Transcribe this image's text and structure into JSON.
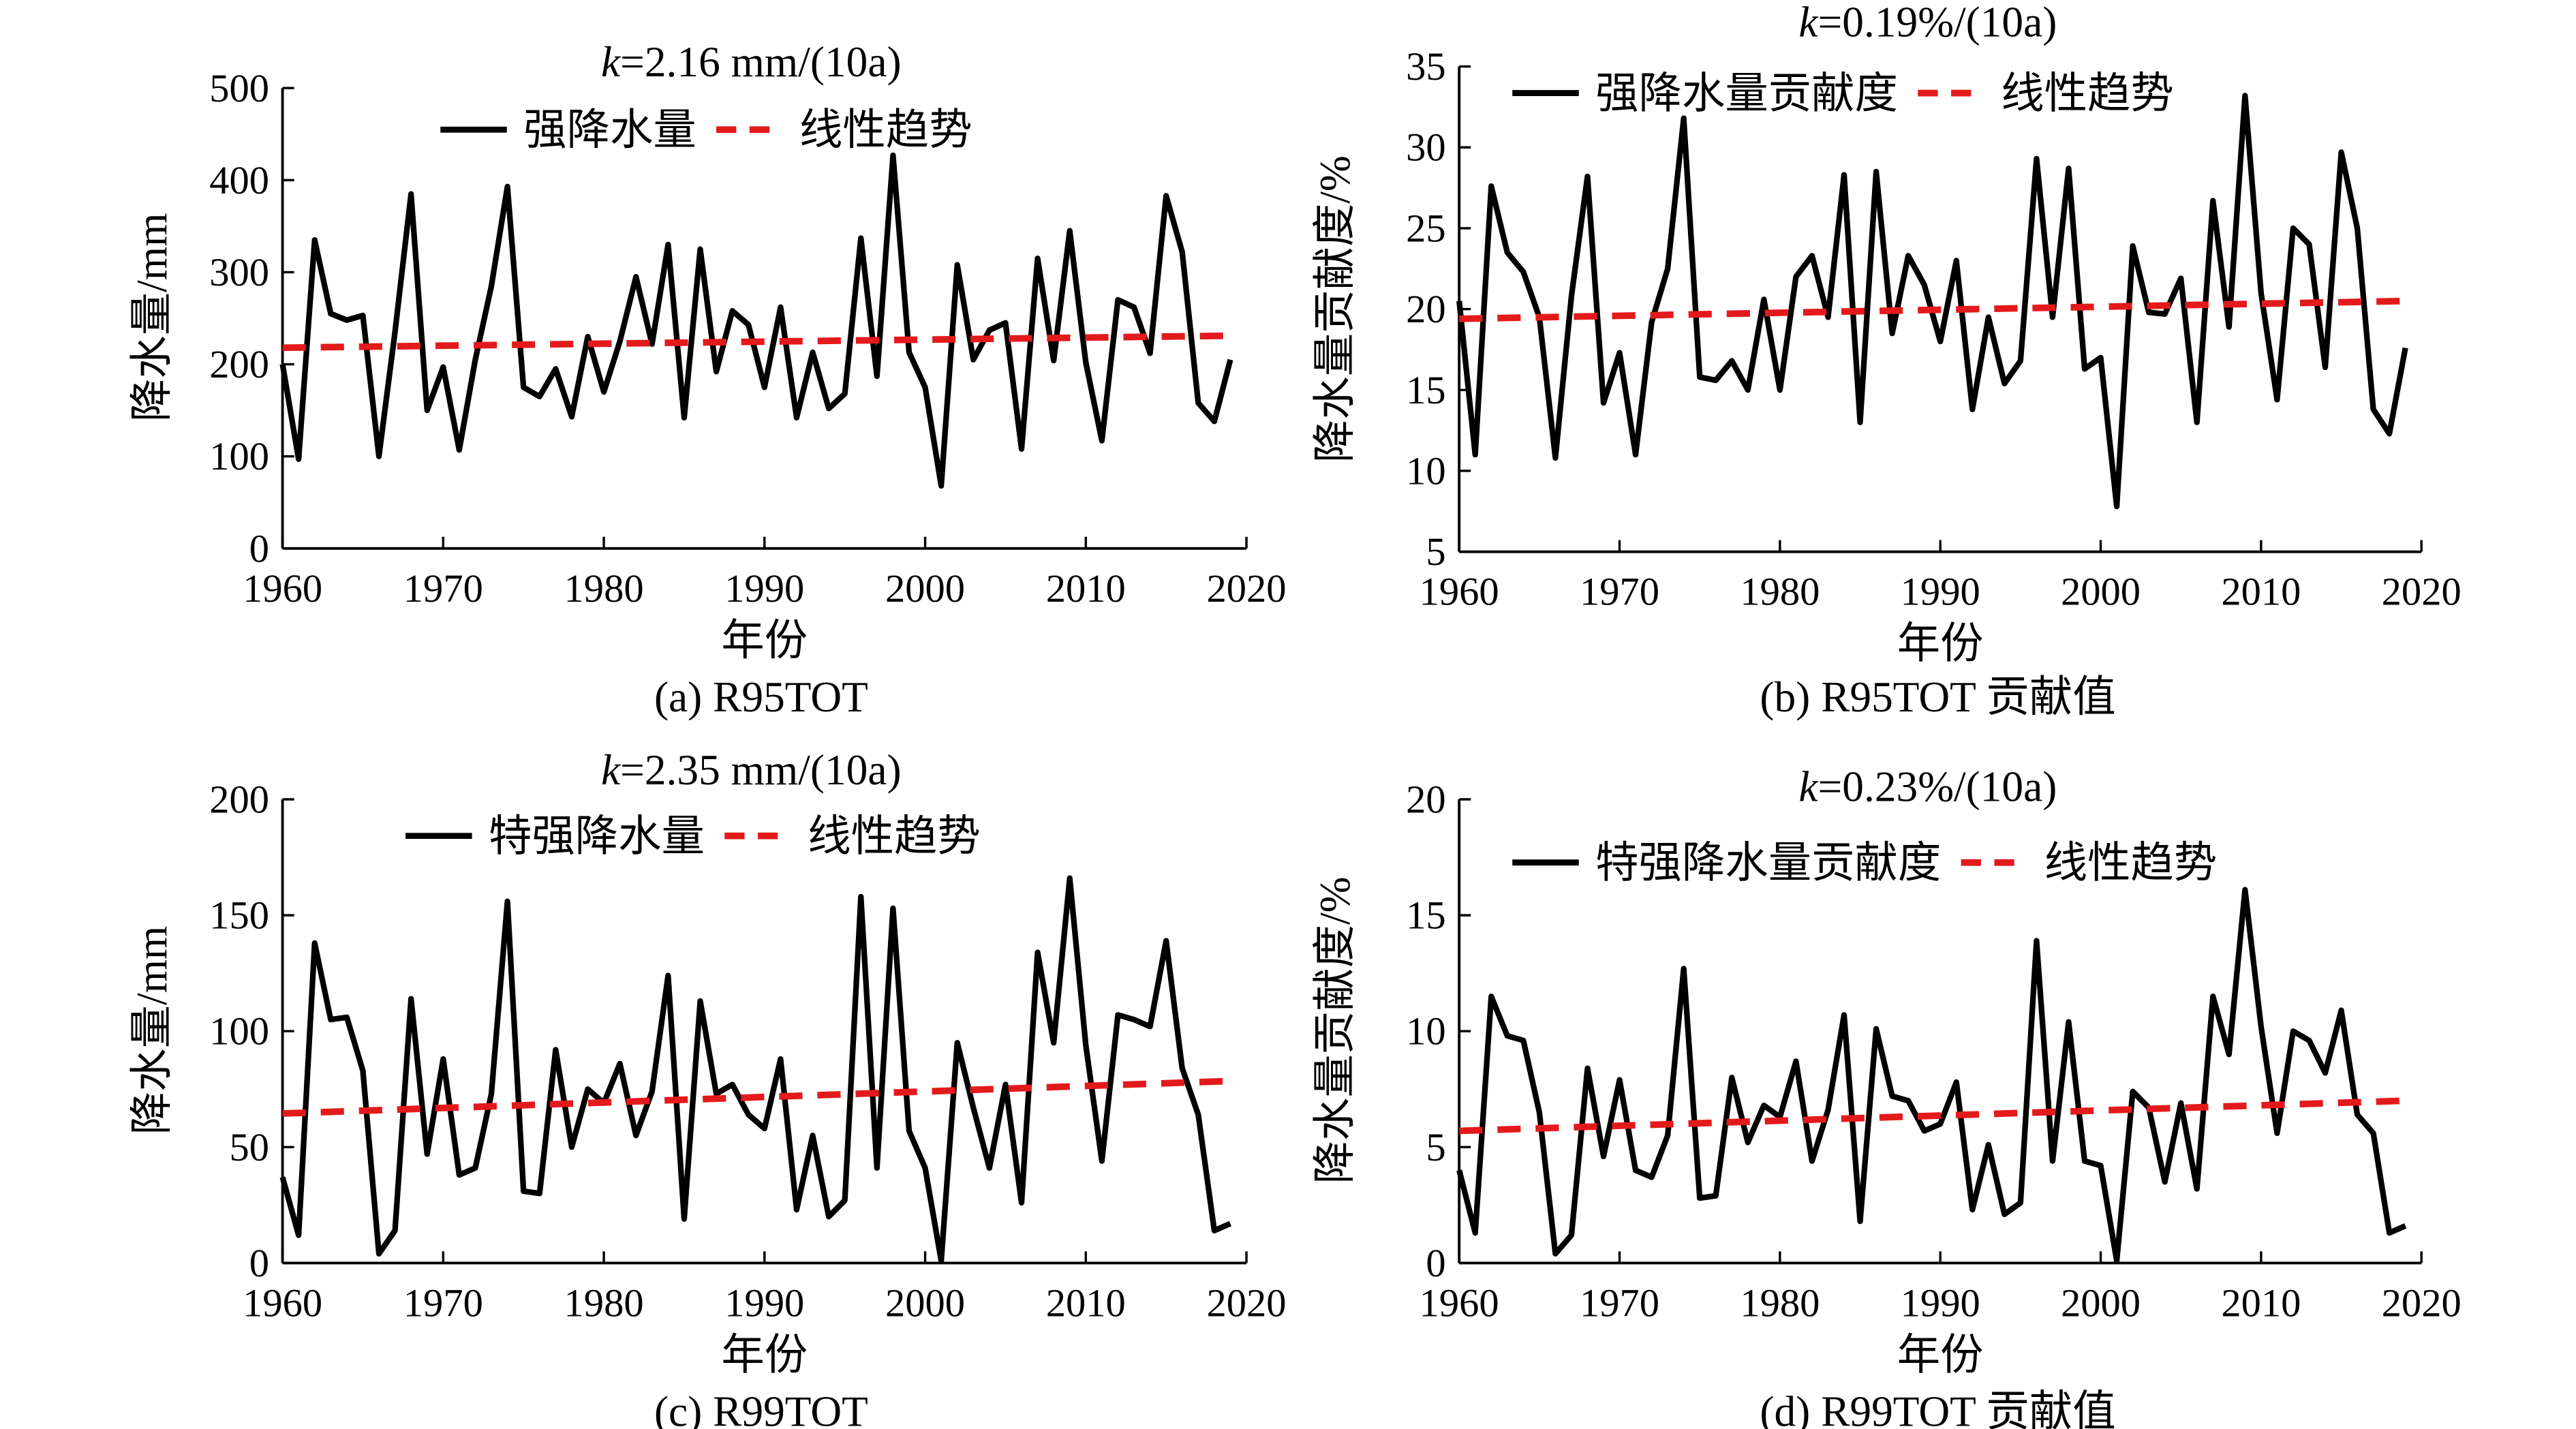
{
  "chart_data": [
    {
      "id": "a",
      "type": "line",
      "annotation": "k=2.16 mm/(10a)",
      "annotation_parts": {
        "k": "k",
        "rest": "=2.16 mm/(10a)"
      },
      "caption": "(a) R95TOT",
      "xlabel": "年份",
      "ylabel": "降水量/mm",
      "xlim": [
        1960,
        2020
      ],
      "ylim": [
        0,
        500
      ],
      "xticks": [
        1960,
        1970,
        1980,
        1990,
        2000,
        2010,
        2020
      ],
      "yticks": [
        0,
        100,
        200,
        300,
        400,
        500
      ],
      "grid": false,
      "legend_placement": "top-center",
      "series": [
        {
          "name": "强降水量",
          "color": "#000000",
          "style": "solid",
          "x": [
            1960,
            1961,
            1962,
            1963,
            1964,
            1965,
            1966,
            1967,
            1968,
            1969,
            1970,
            1971,
            1972,
            1973,
            1974,
            1975,
            1976,
            1977,
            1978,
            1979,
            1980,
            1981,
            1982,
            1983,
            1984,
            1985,
            1986,
            1987,
            1988,
            1989,
            1990,
            1991,
            1992,
            1993,
            1994,
            1995,
            1996,
            1997,
            1998,
            1999,
            2000,
            2001,
            2002,
            2003,
            2004,
            2005,
            2006,
            2007,
            2008,
            2009,
            2010,
            2011,
            2012,
            2013,
            2014,
            2015,
            2016,
            2017,
            2018,
            2019
          ],
          "values": [
            200,
            97,
            335,
            255,
            248,
            253,
            100,
            235,
            385,
            150,
            197,
            107,
            205,
            285,
            393,
            175,
            165,
            195,
            143,
            230,
            170,
            225,
            295,
            222,
            330,
            142,
            325,
            192,
            258,
            243,
            175,
            262,
            142,
            213,
            152,
            168,
            337,
            187,
            427,
            213,
            175,
            68,
            308,
            205,
            237,
            245,
            108,
            315,
            204,
            345,
            202,
            117,
            270,
            262,
            212,
            383,
            322,
            158,
            138,
            205
          ]
        },
        {
          "name": "线性趋势",
          "color": "#e31a1c",
          "style": "dashed",
          "x": [
            1960,
            2019
          ],
          "values": [
            218,
            231
          ]
        }
      ]
    },
    {
      "id": "b",
      "type": "line",
      "annotation": "k=0.19%/(10a)",
      "annotation_parts": {
        "k": "k",
        "rest": "=0.19%/(10a)"
      },
      "caption": "(b) R95TOT 贡献值",
      "xlabel": "年份",
      "ylabel": "降水量贡献度/%",
      "xlim": [
        1960,
        2020
      ],
      "ylim": [
        5,
        35
      ],
      "xticks": [
        1960,
        1970,
        1980,
        1990,
        2000,
        2010,
        2020
      ],
      "yticks": [
        5,
        10,
        15,
        20,
        25,
        30,
        35
      ],
      "grid": false,
      "legend_placement": "top-center",
      "series": [
        {
          "name": "强降水量贡献度",
          "color": "#000000",
          "style": "solid",
          "x": [
            1960,
            1961,
            1962,
            1963,
            1964,
            1965,
            1966,
            1967,
            1968,
            1969,
            1970,
            1971,
            1972,
            1973,
            1974,
            1975,
            1976,
            1977,
            1978,
            1979,
            1980,
            1981,
            1982,
            1983,
            1984,
            1985,
            1986,
            1987,
            1988,
            1989,
            1990,
            1991,
            1992,
            1993,
            1994,
            1995,
            1996,
            1997,
            1998,
            1999,
            2000,
            2001,
            2002,
            2003,
            2004,
            2005,
            2006,
            2007,
            2008,
            2009,
            2010,
            2011,
            2012,
            2013,
            2014,
            2015,
            2016,
            2017,
            2018,
            2019
          ],
          "values": [
            20.5,
            11.0,
            27.6,
            23.5,
            22.3,
            19.5,
            10.8,
            20.8,
            28.2,
            14.2,
            17.3,
            11.0,
            19.2,
            22.5,
            31.8,
            15.8,
            15.6,
            16.8,
            15.0,
            20.6,
            15.0,
            22.0,
            23.3,
            19.5,
            28.3,
            13.0,
            28.5,
            18.5,
            23.3,
            21.5,
            18.0,
            23.0,
            13.8,
            19.5,
            15.4,
            16.8,
            29.3,
            19.5,
            28.7,
            16.3,
            17.0,
            7.8,
            23.9,
            19.8,
            19.7,
            21.9,
            13.0,
            26.7,
            18.9,
            33.2,
            21.0,
            14.4,
            25.0,
            24.0,
            16.4,
            29.7,
            25.0,
            13.8,
            12.3,
            17.6
          ]
        },
        {
          "name": "线性趋势",
          "color": "#e31a1c",
          "style": "dashed",
          "x": [
            1960,
            2019
          ],
          "values": [
            19.4,
            20.5
          ]
        }
      ]
    },
    {
      "id": "c",
      "type": "line",
      "annotation": "k=2.35 mm/(10a)",
      "annotation_parts": {
        "k": "k",
        "rest": "=2.35 mm/(10a)"
      },
      "caption": "(c) R99TOT",
      "xlabel": "年份",
      "ylabel": "降水量/mm",
      "xlim": [
        1960,
        2020
      ],
      "ylim": [
        0,
        200
      ],
      "xticks": [
        1960,
        1970,
        1980,
        1990,
        2000,
        2010,
        2020
      ],
      "yticks": [
        0,
        50,
        100,
        150,
        200
      ],
      "grid": false,
      "legend_placement": "top-center",
      "series": [
        {
          "name": "特强降水量",
          "color": "#000000",
          "style": "solid",
          "x": [
            1960,
            1961,
            1962,
            1963,
            1964,
            1965,
            1966,
            1967,
            1968,
            1969,
            1970,
            1971,
            1972,
            1973,
            1974,
            1975,
            1976,
            1977,
            1978,
            1979,
            1980,
            1981,
            1982,
            1983,
            1984,
            1985,
            1986,
            1987,
            1988,
            1989,
            1990,
            1991,
            1992,
            1993,
            1994,
            1995,
            1996,
            1997,
            1998,
            1999,
            2000,
            2001,
            2002,
            2003,
            2004,
            2005,
            2006,
            2007,
            2008,
            2009,
            2010,
            2011,
            2012,
            2013,
            2014,
            2015,
            2016,
            2017,
            2018,
            2019
          ],
          "values": [
            37,
            12,
            138,
            105,
            106,
            83,
            4,
            14,
            114,
            47,
            88,
            38,
            41,
            73,
            156,
            31,
            30,
            92,
            50,
            75,
            69,
            86,
            55,
            74,
            124,
            19,
            113,
            73,
            77,
            64,
            58,
            88,
            23,
            55,
            20,
            27,
            158,
            41,
            153,
            57,
            41,
            1,
            95,
            67,
            41,
            77,
            26,
            134,
            95,
            166,
            94,
            44,
            107,
            105,
            102,
            139,
            84,
            64,
            14,
            17
          ]
        },
        {
          "name": "线性趋势",
          "color": "#e31a1c",
          "style": "dashed",
          "x": [
            1960,
            2019
          ],
          "values": [
            64.5,
            78.5
          ]
        }
      ]
    },
    {
      "id": "d",
      "type": "line",
      "annotation": "k=0.23%/(10a)",
      "annotation_parts": {
        "k": "k",
        "rest": "=0.23%/(10a)"
      },
      "caption": "(d) R99TOT 贡献值",
      "xlabel": "年份",
      "ylabel": "降水量贡献度/%",
      "xlim": [
        1960,
        2020
      ],
      "ylim": [
        0,
        20
      ],
      "xticks": [
        1960,
        1970,
        1980,
        1990,
        2000,
        2010,
        2020
      ],
      "yticks": [
        0,
        5,
        10,
        15,
        20
      ],
      "grid": false,
      "legend_placement": "top-center",
      "series": [
        {
          "name": "特强降水量贡献度",
          "color": "#000000",
          "style": "solid",
          "x": [
            1960,
            1961,
            1962,
            1963,
            1964,
            1965,
            1966,
            1967,
            1968,
            1969,
            1970,
            1971,
            1972,
            1973,
            1974,
            1975,
            1976,
            1977,
            1978,
            1979,
            1980,
            1981,
            1982,
            1983,
            1984,
            1985,
            1986,
            1987,
            1988,
            1989,
            1990,
            1991,
            1992,
            1993,
            1994,
            1995,
            1996,
            1997,
            1998,
            1999,
            2000,
            2001,
            2002,
            2003,
            2004,
            2005,
            2006,
            2007,
            2008,
            2009,
            2010,
            2011,
            2012,
            2013,
            2014,
            2015,
            2016,
            2017,
            2018,
            2019
          ],
          "values": [
            4.0,
            1.3,
            11.5,
            9.8,
            9.6,
            6.5,
            0.4,
            1.2,
            8.4,
            4.6,
            7.9,
            4.0,
            3.7,
            5.5,
            12.7,
            2.8,
            2.9,
            8.0,
            5.2,
            6.8,
            6.3,
            8.7,
            4.4,
            6.6,
            10.7,
            1.8,
            10.1,
            7.2,
            7.0,
            5.7,
            6.0,
            7.8,
            2.3,
            5.1,
            2.1,
            2.6,
            13.9,
            4.4,
            10.4,
            4.4,
            4.2,
            0.1,
            7.4,
            6.7,
            3.5,
            6.9,
            3.2,
            11.5,
            9.0,
            16.1,
            10.2,
            5.6,
            10.0,
            9.6,
            8.2,
            10.9,
            6.4,
            5.6,
            1.3,
            1.6
          ]
        },
        {
          "name": "线性趋势",
          "color": "#e31a1c",
          "style": "dashed",
          "x": [
            1960,
            2019
          ],
          "values": [
            5.7,
            7.0
          ]
        }
      ]
    }
  ]
}
